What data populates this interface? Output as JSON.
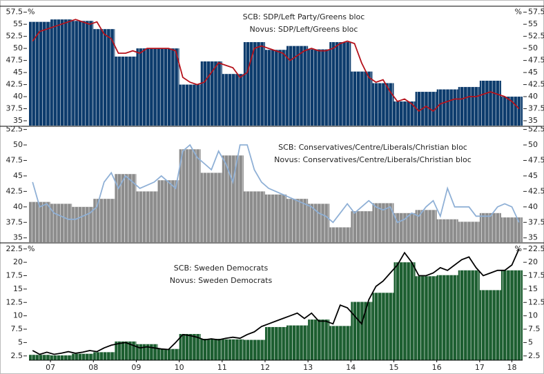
{
  "chart_data": [
    {
      "type": "combo",
      "unit": "%",
      "ylim": [
        34,
        58.6
      ],
      "yticks": [
        35.0,
        37.5,
        40.0,
        42.5,
        45.0,
        47.5,
        50.0,
        52.5,
        55.0,
        57.5
      ],
      "xlim": [
        2007,
        2018.5
      ],
      "series": [
        {
          "name": "SCB: SDP/Left Party/Greens bloc",
          "type": "bar",
          "color": "#0c3b6c",
          "values": [
            55.5,
            56.0,
            55.7,
            54.0,
            48.3,
            50.0,
            50.0,
            42.5,
            47.3,
            44.7,
            51.3,
            49.7,
            50.5,
            49.8,
            51.3,
            45.2,
            42.8,
            39.0,
            41.0,
            41.5,
            42.0,
            43.3,
            40.0
          ]
        },
        {
          "name": "Novus: SDP/Left/Greens bloc",
          "type": "line",
          "color": "#b5121b",
          "values": [
            51.5,
            53.5,
            54,
            54.5,
            55,
            55.5,
            56,
            55.5,
            55,
            55.5,
            53,
            52,
            49,
            49,
            49.5,
            49,
            50,
            50,
            50,
            50,
            49.5,
            44,
            43,
            42.5,
            43,
            45,
            47,
            46.5,
            46,
            44,
            45,
            50,
            50.5,
            50,
            49.5,
            49,
            47.5,
            48.5,
            49.5,
            50,
            49.5,
            49.5,
            50,
            51,
            51.5,
            51,
            47,
            44,
            43,
            43.5,
            41,
            39,
            39.5,
            38.5,
            37,
            38,
            37,
            38.5,
            39,
            39.5,
            39.5,
            40,
            40,
            40.5,
            41,
            40.5,
            40,
            39,
            37.5
          ]
        }
      ]
    },
    {
      "type": "combo",
      "ylim": [
        34.3,
        52.9
      ],
      "yticks": [
        35.0,
        37.5,
        40.0,
        42.5,
        45.0,
        47.5,
        50.0,
        52.5
      ],
      "xlim": [
        2007,
        2018.5
      ],
      "series": [
        {
          "name": "SCB: Conservatives/Centre/Liberals/Christian bloc",
          "type": "bar",
          "color": "#8c8c8c",
          "values": [
            40.8,
            40.5,
            40.0,
            41.3,
            45.3,
            42.5,
            44.3,
            49.3,
            45.5,
            48.3,
            42.5,
            42.0,
            41.3,
            40.5,
            36.7,
            39.3,
            40.6,
            39.0,
            39.5,
            38.0,
            37.6,
            39.0,
            38.3
          ]
        },
        {
          "name": "Novus: Conservatives/Centre/Liberals/Christian bloc",
          "type": "line",
          "color": "#8fb0d6",
          "values": [
            44,
            40,
            40.5,
            39,
            38.5,
            38,
            38,
            38.5,
            39,
            40,
            44,
            45.5,
            43,
            45,
            44,
            43,
            43.5,
            44,
            45,
            44,
            43,
            49,
            50,
            48,
            47,
            46,
            49,
            47,
            44,
            50,
            50,
            46,
            44,
            43,
            42.5,
            42,
            41.5,
            41,
            40.5,
            40,
            39,
            38.5,
            37.5,
            39,
            40.5,
            39,
            40,
            41,
            40,
            39.5,
            40,
            37.5,
            38,
            39,
            38.5,
            40,
            41,
            38.5,
            43,
            40,
            40,
            40,
            38.5,
            38.5,
            38.5,
            40,
            40.5,
            40,
            37.5
          ]
        }
      ]
    },
    {
      "type": "combo",
      "unit": "%",
      "ylim": [
        1.7,
        23.5
      ],
      "yticks": [
        2.5,
        5.0,
        7.5,
        10.0,
        12.5,
        15.0,
        17.5,
        20.0,
        22.5
      ],
      "xlim": [
        2007,
        2018.5
      ],
      "xticks": [
        {
          "value": 2007.5,
          "label": "07"
        },
        {
          "value": 2008.5,
          "label": "08"
        },
        {
          "value": 2009.5,
          "label": "09"
        },
        {
          "value": 2010.5,
          "label": "10"
        },
        {
          "value": 2011.5,
          "label": "11"
        },
        {
          "value": 2012.5,
          "label": "12"
        },
        {
          "value": 2013.5,
          "label": "13"
        },
        {
          "value": 2014.5,
          "label": "14"
        },
        {
          "value": 2015.5,
          "label": "15"
        },
        {
          "value": 2016.5,
          "label": "16"
        },
        {
          "value": 2017.5,
          "label": "17"
        },
        {
          "value": 2018.25,
          "label": "18"
        }
      ],
      "series": [
        {
          "name": "SCB: Sweden Democrats",
          "type": "bar",
          "color": "#1c5e30",
          "values": [
            2.7,
            2.6,
            2.9,
            3.2,
            5.2,
            4.7,
            3.8,
            6.6,
            5.7,
            5.6,
            5.5,
            7.9,
            8.2,
            9.3,
            8.1,
            12.6,
            14.3,
            20.0,
            17.4,
            17.6,
            18.5,
            14.8,
            18.5
          ]
        },
        {
          "name": "Novus: Sweden Democrats",
          "type": "line",
          "color": "#000000",
          "values": [
            3.5,
            2.8,
            3.2,
            2.8,
            3.0,
            3.3,
            3.0,
            3.2,
            3.5,
            3.3,
            4.0,
            4.5,
            4.8,
            5.0,
            4.5,
            4.0,
            4.2,
            4.0,
            3.8,
            3.7,
            5.0,
            6.5,
            6.3,
            6.0,
            5.5,
            5.7,
            5.5,
            5.8,
            6.0,
            5.8,
            6.5,
            7.0,
            8.0,
            8.5,
            9.0,
            9.5,
            10.0,
            10.5,
            9.5,
            10.5,
            9.0,
            9.0,
            8.5,
            12.0,
            11.5,
            10.0,
            8.5,
            13.0,
            15.5,
            16.5,
            18.0,
            19.5,
            21.8,
            20.0,
            17.5,
            17.5,
            18.0,
            19.0,
            18.5,
            19.5,
            20.5,
            21.0,
            19.0,
            17.5,
            18.0,
            18.5,
            18.5,
            19.5,
            22.5
          ]
        }
      ]
    }
  ]
}
